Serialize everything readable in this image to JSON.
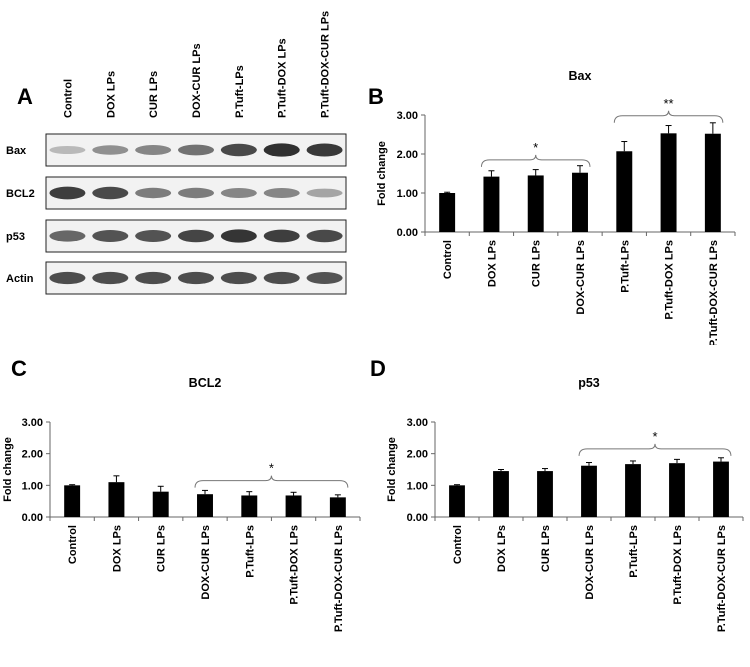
{
  "panels": {
    "a": "A",
    "b": "B",
    "c": "C",
    "d": "D"
  },
  "western_blot": {
    "lanes": [
      "Control",
      "DOX LPs",
      "CUR LPs",
      "DOX-CUR LPs",
      "P.Tuft-LPs",
      "P.Tuft-DOX LPs",
      "P.Tuft-DOX-CUR LPs"
    ],
    "rows": [
      {
        "label": "Bax",
        "intensity": [
          0.25,
          0.45,
          0.5,
          0.6,
          0.8,
          0.92,
          0.88
        ]
      },
      {
        "label": "BCL2",
        "intensity": [
          0.85,
          0.8,
          0.55,
          0.55,
          0.5,
          0.5,
          0.35
        ]
      },
      {
        "label": "p53",
        "intensity": [
          0.65,
          0.75,
          0.75,
          0.82,
          0.9,
          0.85,
          0.8
        ]
      },
      {
        "label": "Actin",
        "intensity": [
          0.78,
          0.78,
          0.78,
          0.78,
          0.78,
          0.78,
          0.75
        ]
      }
    ]
  },
  "chart_data": [
    {
      "type": "bar",
      "title": "Bax",
      "ylabel": "Fold change",
      "xlabel": "",
      "categories": [
        "Control",
        "DOX LPs",
        "CUR LPs",
        "DOX-CUR LPs",
        "P.Tuft-LPs",
        "P.Tuft-DOX LPs",
        "P.Tuft-DOX-CUR LPs"
      ],
      "values": [
        1.0,
        1.42,
        1.45,
        1.52,
        2.07,
        2.53,
        2.52
      ],
      "errors": [
        0.02,
        0.15,
        0.15,
        0.18,
        0.25,
        0.2,
        0.28
      ],
      "ylim": [
        0,
        3
      ],
      "yticks": [
        "0.00",
        "1.00",
        "2.00",
        "3.00"
      ],
      "grid": false,
      "annotations": [
        {
          "text": "*",
          "from": 1,
          "to": 3,
          "y": 1.85
        },
        {
          "text": "**",
          "from": 4,
          "to": 6,
          "y": 2.98
        }
      ]
    },
    {
      "type": "bar",
      "title": "BCL2",
      "ylabel": "Fold change",
      "xlabel": "",
      "categories": [
        "Control",
        "DOX LPs",
        "CUR LPs",
        "DOX-CUR LPs",
        "P.Tuft-LPs",
        "P.Tuft-DOX LPs",
        "P.Tuft-DOX-CUR LPs"
      ],
      "values": [
        1.0,
        1.1,
        0.8,
        0.72,
        0.68,
        0.68,
        0.62
      ],
      "errors": [
        0.02,
        0.2,
        0.17,
        0.12,
        0.12,
        0.1,
        0.08
      ],
      "ylim": [
        0,
        3
      ],
      "yticks": [
        "0.00",
        "1.00",
        "2.00",
        "3.00"
      ],
      "grid": false,
      "annotations": [
        {
          "text": "*",
          "from": 3,
          "to": 6,
          "y": 1.15
        }
      ]
    },
    {
      "type": "bar",
      "title": "p53",
      "ylabel": "Fold change",
      "xlabel": "",
      "categories": [
        "Control",
        "DOX LPs",
        "CUR LPs",
        "DOX-CUR LPs",
        "P.Tuft-LPs",
        "P.Tuft-DOX LPs",
        "P.Tuft-DOX-CUR LPs"
      ],
      "values": [
        1.0,
        1.45,
        1.45,
        1.62,
        1.67,
        1.7,
        1.75
      ],
      "errors": [
        0.02,
        0.05,
        0.08,
        0.1,
        0.1,
        0.12,
        0.12
      ],
      "ylim": [
        0,
        3
      ],
      "yticks": [
        "0.00",
        "1.00",
        "2.00",
        "3.00"
      ],
      "grid": false,
      "annotations": [
        {
          "text": "*",
          "from": 3,
          "to": 6,
          "y": 2.15
        }
      ]
    }
  ]
}
